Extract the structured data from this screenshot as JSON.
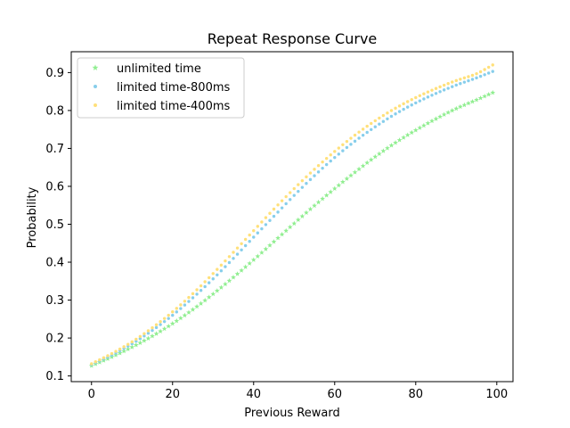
{
  "chart_data": {
    "type": "scatter",
    "title": "Repeat Response Curve",
    "xlabel": "Previous Reward",
    "ylabel": "Probability",
    "xlim": [
      -5,
      104
    ],
    "ylim": [
      0.085,
      0.955
    ],
    "xticks": [
      0,
      20,
      40,
      60,
      80,
      100
    ],
    "yticks": [
      0.1,
      0.2,
      0.3,
      0.4,
      0.5,
      0.6,
      0.7,
      0.8,
      0.9
    ],
    "xtick_labels": [
      "0",
      "20",
      "40",
      "60",
      "80",
      "100"
    ],
    "ytick_labels": [
      "0.1",
      "0.2",
      "0.3",
      "0.4",
      "0.5",
      "0.6",
      "0.7",
      "0.8",
      "0.9"
    ],
    "grid": false,
    "legend_position": "upper-left",
    "series": [
      {
        "name": "unlimited time",
        "color": "#90EE90",
        "marker": "star",
        "x": [
          0,
          5,
          10,
          15,
          20,
          25,
          30,
          35,
          40,
          45,
          50,
          55,
          60,
          65,
          70,
          75,
          80,
          85,
          90,
          95,
          99
        ],
        "y": [
          0.127,
          0.15,
          0.176,
          0.205,
          0.238,
          0.275,
          0.316,
          0.36,
          0.406,
          0.454,
          0.502,
          0.549,
          0.594,
          0.637,
          0.678,
          0.715,
          0.748,
          0.778,
          0.805,
          0.828,
          0.847
        ]
      },
      {
        "name": "limited time-800ms",
        "color": "#87CEEB",
        "marker": "dot",
        "x": [
          0,
          5,
          10,
          15,
          20,
          25,
          30,
          35,
          40,
          45,
          50,
          55,
          60,
          65,
          70,
          75,
          80,
          85,
          90,
          95,
          99
        ],
        "y": [
          0.13,
          0.155,
          0.185,
          0.22,
          0.26,
          0.306,
          0.356,
          0.41,
          0.466,
          0.521,
          0.576,
          0.628,
          0.676,
          0.719,
          0.757,
          0.791,
          0.82,
          0.845,
          0.867,
          0.886,
          0.903
        ]
      },
      {
        "name": "limited time-400ms",
        "color": "#FFE07A",
        "marker": "dot",
        "x": [
          0,
          5,
          10,
          15,
          20,
          25,
          30,
          35,
          40,
          45,
          50,
          55,
          60,
          65,
          70,
          75,
          80,
          85,
          90,
          95,
          99
        ],
        "y": [
          0.132,
          0.159,
          0.19,
          0.227,
          0.269,
          0.317,
          0.37,
          0.426,
          0.483,
          0.54,
          0.594,
          0.645,
          0.692,
          0.735,
          0.773,
          0.806,
          0.834,
          0.858,
          0.879,
          0.897,
          0.92
        ]
      }
    ]
  }
}
